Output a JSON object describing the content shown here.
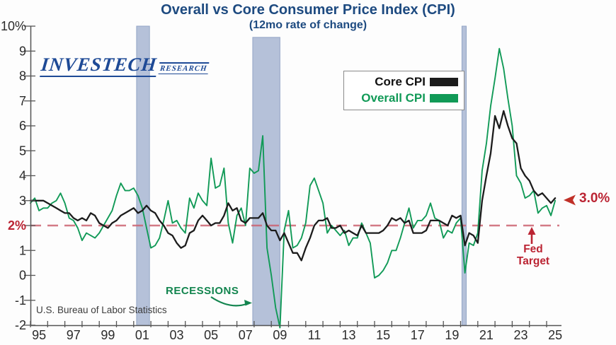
{
  "colors": {
    "title_blue": "#1d4a80",
    "logo_blue": "#1e4a96",
    "overall_green": "#119a57",
    "core_black": "#1c1c1c",
    "recession_band_fill": "#b5c1d9",
    "recession_band_edge": "#93a5c6",
    "fed_dash_red": "#cc6472",
    "annotation_red": "#bb2433",
    "axis_gray": "#555555",
    "tick_label_gray": "#2b2b2b"
  },
  "logo": {
    "name": "INVESTECH",
    "suffix": "RESEARCH"
  },
  "annotations": {
    "recessions_label": "RECESSIONS",
    "fed_target_label": "Fed\nTarget",
    "current_value_label": "3.0%",
    "source": "U.S. Bureau of Labor Statistics"
  },
  "chart_data": {
    "type": "line",
    "title": "Overall vs Core Consumer Price Index (CPI)",
    "subtitle": "(12mo rate of change)",
    "xlabel": "",
    "ylabel": "",
    "ylim": [
      -2,
      10
    ],
    "xlim": [
      1995,
      2025.9
    ],
    "grid": false,
    "legend_position": "upper center-right",
    "x_start": 1995.0,
    "x_step": 0.25,
    "fed_target_value": 2.0,
    "latest_value": 3.0,
    "yticks": [
      {
        "v": 10,
        "t": "10%"
      },
      {
        "v": 9,
        "t": "9"
      },
      {
        "v": 8,
        "t": "8"
      },
      {
        "v": 7,
        "t": "7"
      },
      {
        "v": 6,
        "t": "6"
      },
      {
        "v": 5,
        "t": "5"
      },
      {
        "v": 4,
        "t": "4"
      },
      {
        "v": 3,
        "t": "3"
      },
      {
        "v": 2,
        "t": "2%",
        "red": true
      },
      {
        "v": 1,
        "t": "1"
      },
      {
        "v": 0,
        "t": "0"
      },
      {
        "v": -1,
        "t": "-1"
      },
      {
        "v": -2,
        "t": "-2"
      }
    ],
    "xtick_years": [
      1995,
      1996,
      1997,
      1998,
      1999,
      2000,
      2001,
      2002,
      2003,
      2004,
      2005,
      2006,
      2007,
      2008,
      2009,
      2010,
      2011,
      2012,
      2013,
      2014,
      2015,
      2016,
      2017,
      2018,
      2019,
      2020,
      2021,
      2022,
      2023,
      2024,
      2025
    ],
    "xtick_labels": [
      {
        "year": 1995,
        "t": "95"
      },
      {
        "year": 1997,
        "t": "97"
      },
      {
        "year": 1999,
        "t": "99"
      },
      {
        "year": 2001,
        "t": "01"
      },
      {
        "year": 2003,
        "t": "03"
      },
      {
        "year": 2005,
        "t": "05"
      },
      {
        "year": 2007,
        "t": "07"
      },
      {
        "year": 2009,
        "t": "09"
      },
      {
        "year": 2011,
        "t": "11"
      },
      {
        "year": 2013,
        "t": "13"
      },
      {
        "year": 2015,
        "t": "15"
      },
      {
        "year": 2017,
        "t": "17"
      },
      {
        "year": 2019,
        "t": "19"
      },
      {
        "year": 2021,
        "t": "21"
      },
      {
        "year": 2023,
        "t": "23"
      },
      {
        "year": 2025,
        "t": "25"
      }
    ],
    "recessions": [
      {
        "start": 2001.17,
        "end": 2001.92,
        "top": 10
      },
      {
        "start": 2007.92,
        "end": 2009.5,
        "top": 9.55
      },
      {
        "start": 2020.08,
        "end": 2020.33,
        "top": 10
      }
    ],
    "series": [
      {
        "name": "Core CPI",
        "color": "#1c1c1c",
        "values": [
          3.0,
          3.0,
          3.0,
          3.0,
          2.9,
          2.8,
          2.7,
          2.6,
          2.5,
          2.5,
          2.3,
          2.2,
          2.3,
          2.2,
          2.5,
          2.4,
          2.1,
          2.0,
          1.9,
          2.1,
          2.2,
          2.4,
          2.5,
          2.6,
          2.7,
          2.5,
          2.6,
          2.8,
          2.6,
          2.5,
          2.2,
          2.0,
          1.7,
          1.6,
          1.3,
          1.1,
          1.2,
          1.7,
          1.8,
          2.2,
          2.4,
          2.2,
          2.0,
          2.1,
          2.1,
          2.4,
          2.9,
          2.6,
          2.7,
          2.2,
          2.1,
          2.3,
          2.3,
          2.3,
          2.5,
          2.0,
          1.8,
          1.8,
          1.4,
          1.7,
          1.3,
          0.9,
          0.9,
          0.6,
          1.1,
          1.5,
          2.0,
          2.2,
          2.2,
          2.3,
          1.9,
          1.9,
          2.0,
          1.7,
          1.8,
          1.7,
          1.6,
          2.0,
          1.7,
          1.7,
          1.7,
          1.7,
          1.8,
          2.0,
          2.3,
          2.2,
          2.3,
          2.1,
          2.2,
          1.7,
          1.7,
          1.7,
          1.8,
          2.2,
          2.2,
          2.2,
          2.1,
          2.0,
          2.4,
          2.3,
          2.4,
          1.2,
          1.7,
          1.6,
          1.3,
          3.0,
          4.0,
          4.9,
          6.4,
          5.9,
          6.6,
          6.0,
          5.5,
          5.3,
          4.3,
          4.0,
          3.8,
          3.4,
          3.2,
          3.3,
          3.1,
          2.9,
          3.1
        ]
      },
      {
        "name": "Overall CPI",
        "color": "#119a57",
        "values": [
          2.9,
          3.1,
          2.6,
          2.7,
          2.7,
          2.9,
          3.0,
          3.3,
          2.9,
          2.3,
          2.2,
          1.9,
          1.4,
          1.7,
          1.6,
          1.5,
          1.7,
          2.0,
          2.3,
          2.6,
          3.2,
          3.7,
          3.4,
          3.4,
          3.5,
          3.2,
          2.7,
          1.9,
          1.1,
          1.2,
          1.5,
          2.2,
          3.0,
          2.1,
          2.2,
          1.9,
          1.7,
          3.1,
          2.7,
          3.3,
          3.0,
          2.8,
          4.7,
          3.5,
          3.6,
          4.3,
          2.1,
          1.3,
          2.4,
          2.7,
          2.0,
          4.3,
          4.1,
          4.2,
          5.6,
          1.1,
          0.0,
          -1.3,
          -2.1,
          1.8,
          2.6,
          1.1,
          1.2,
          1.5,
          2.1,
          3.6,
          3.9,
          3.4,
          2.9,
          1.7,
          2.0,
          1.8,
          1.6,
          1.8,
          1.2,
          1.5,
          1.5,
          2.1,
          1.7,
          1.3,
          -0.1,
          0.0,
          0.2,
          0.5,
          1.0,
          1.0,
          1.5,
          2.1,
          2.7,
          1.9,
          2.2,
          2.2,
          2.4,
          2.9,
          2.3,
          2.2,
          1.5,
          1.8,
          1.7,
          2.1,
          2.3,
          0.1,
          1.3,
          1.2,
          1.7,
          4.2,
          5.3,
          6.8,
          7.9,
          9.1,
          8.3,
          7.1,
          6.0,
          4.0,
          3.7,
          3.1,
          3.2,
          3.4,
          2.5,
          2.7,
          2.8,
          2.4,
          3.0
        ]
      }
    ]
  }
}
